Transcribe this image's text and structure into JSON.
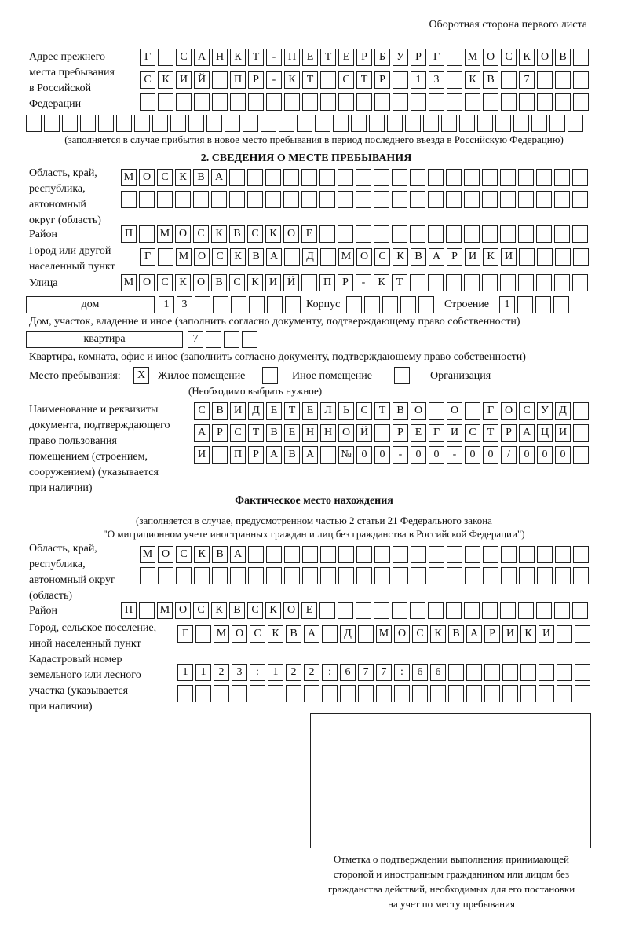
{
  "header": "Оборотная сторона первого листа",
  "prev_address": {
    "label": "Адрес прежнего\nместа пребывания\nв Российской\nФедерации",
    "rows": [
      [
        "Г",
        "",
        "С",
        "А",
        "Н",
        "К",
        "Т",
        "-",
        "П",
        "Е",
        "Т",
        "Е",
        "Р",
        "Б",
        "У",
        "Р",
        "Г",
        "",
        "М",
        "О",
        "С",
        "К",
        "О",
        "В"
      ],
      [
        "С",
        "К",
        "И",
        "Й",
        "",
        "П",
        "Р",
        "-",
        "К",
        "Т",
        "",
        "С",
        "Т",
        "Р",
        "",
        "1",
        "3",
        "",
        "К",
        "В",
        "",
        "7"
      ],
      [],
      []
    ],
    "note": "(заполняется в случае прибытия в новое место пребывания в период последнего въезда в Российскую Федерацию)"
  },
  "section2": {
    "title": "2. СВЕДЕНИЯ О МЕСТЕ ПРЕБЫВАНИЯ",
    "region_label": "Область, край,\nреспублика,\nавтономный\nокруг (область)",
    "region_rows": [
      [
        "М",
        "О",
        "С",
        "К",
        "В",
        "А"
      ],
      []
    ],
    "district_label": "Район",
    "district": [
      "П",
      "",
      "М",
      "О",
      "С",
      "К",
      "В",
      "С",
      "К",
      "О",
      "Е"
    ],
    "city_label": "Город или другой\nнаселенный пункт",
    "city": [
      "Г",
      "",
      "М",
      "О",
      "С",
      "К",
      "В",
      "А",
      "",
      "Д",
      "",
      "М",
      "О",
      "С",
      "К",
      "В",
      "А",
      "Р",
      "И",
      "К",
      "И"
    ],
    "street_label": "Улица",
    "street": [
      "М",
      "О",
      "С",
      "К",
      "О",
      "В",
      "С",
      "К",
      "И",
      "Й",
      "",
      "П",
      "Р",
      "-",
      "К",
      "Т"
    ],
    "house_type": "дом",
    "house": [
      "1",
      "3"
    ],
    "korpus_label": "Корпус",
    "korpus": [],
    "building_label": "Строение",
    "building": [
      "1"
    ],
    "house_note": "Дом, участок, владение и иное (заполнить согласно документу, подтверждающему право собственности)",
    "flat_type": "квартира",
    "flat": [
      "7"
    ],
    "flat_note": "Квартира, комната, офис и иное (заполнить согласно документу, подтверждающему право собственности)",
    "stay_label": "Место пребывания:",
    "stay_options": [
      {
        "label": "Жилое помещение",
        "mark": "X",
        "checked": true
      },
      {
        "label": "Иное помещение",
        "mark": "",
        "checked": false
      },
      {
        "label": "Организация",
        "mark": "",
        "checked": false
      }
    ],
    "stay_note": "(Необходимо выбрать нужное)",
    "doc_label": "Наименование и реквизиты\nдокумента, подтверждающего\nправо пользования\nпомещением (строением,\nсооружением) (указывается\nпри наличии)",
    "doc_rows": [
      [
        "С",
        "В",
        "И",
        "Д",
        "Е",
        "Т",
        "Е",
        "Л",
        "Ь",
        "С",
        "Т",
        "В",
        "О",
        "",
        "О",
        "",
        "Г",
        "О",
        "С",
        "У",
        "Д"
      ],
      [
        "А",
        "Р",
        "С",
        "Т",
        "В",
        "Е",
        "Н",
        "Н",
        "О",
        "Й",
        "",
        "Р",
        "Е",
        "Г",
        "И",
        "С",
        "Т",
        "Р",
        "А",
        "Ц",
        "И"
      ],
      [
        "И",
        "",
        "П",
        "Р",
        "А",
        "В",
        "А",
        "",
        "№",
        "0",
        "0",
        "-",
        "0",
        "0",
        "-",
        "0",
        "0",
        "/",
        "0",
        "0",
        "0"
      ]
    ]
  },
  "actual": {
    "title": "Фактическое место нахождения",
    "note1": "(заполняется в случае, предусмотренном частью 2 статьи 21 Федерального закона",
    "note2": "\"О миграционном учете иностранных граждан и лиц без гражданства в Российской Федерации\")",
    "region_label": "Область, край,\nреспублика,\nавтономный округ\n(область)",
    "region_rows": [
      [
        "М",
        "О",
        "С",
        "К",
        "В",
        "А"
      ],
      []
    ],
    "district_label": "Район",
    "district": [
      "П",
      "",
      "М",
      "О",
      "С",
      "К",
      "В",
      "С",
      "К",
      "О",
      "Е"
    ],
    "city_label": "Город, сельское поселение,\nиной населенный пункт",
    "city": [
      "Г",
      "",
      "М",
      "О",
      "С",
      "К",
      "В",
      "А",
      "",
      "Д",
      "",
      "М",
      "О",
      "С",
      "К",
      "В",
      "А",
      "Р",
      "И",
      "К",
      "И"
    ],
    "cadastre_label": "Кадастровый номер\nземельного или лесного\nучастка (указывается\nпри наличии)",
    "cadastre_rows": [
      [
        "1",
        "1",
        "2",
        "3",
        ":",
        "1",
        "2",
        "2",
        ":",
        "6",
        "7",
        "7",
        ":",
        "6",
        "6"
      ],
      []
    ]
  },
  "stamp": {
    "caption": "Отметка о подтверждении выполнения принимающей\nстороной и иностранным гражданином или лицом без\nгражданства действий, необходимых для его постановки\nна учет по месту пребывания"
  }
}
